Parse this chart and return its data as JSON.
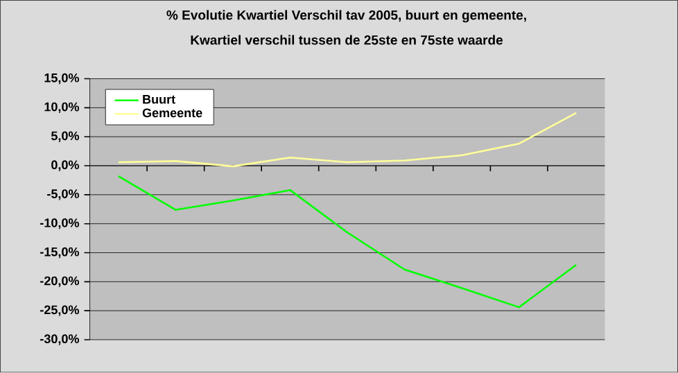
{
  "chart_data": {
    "type": "line",
    "title": "% Evolutie Kwartiel Verschil tav 2005, buurt en gemeente,",
    "subtitle": "Kwartiel verschil tussen de 25ste en 75ste waarde",
    "categories": [
      null,
      null,
      null,
      null,
      null,
      null,
      null,
      null,
      null
    ],
    "series": [
      {
        "name": "Buurt",
        "color": "#00ff00",
        "values": [
          -1.8,
          -7.6,
          -6.0,
          -4.2,
          -11.5,
          -17.9,
          -21.1,
          -24.4,
          -17.1
        ]
      },
      {
        "name": "Gemeente",
        "color": "#ffff99",
        "values": [
          0.6,
          0.8,
          -0.1,
          1.4,
          0.6,
          0.9,
          1.8,
          3.8,
          9.1
        ]
      }
    ],
    "ylim": [
      -30,
      15
    ],
    "yticks": [
      {
        "value": -30,
        "label": "-30,0%"
      },
      {
        "value": -25,
        "label": "-25,0%"
      },
      {
        "value": -20,
        "label": "-20,0%"
      },
      {
        "value": -15,
        "label": "-15,0%"
      },
      {
        "value": -10,
        "label": "-10,0%"
      },
      {
        "value": -5,
        "label": "-5,0%"
      },
      {
        "value": 0,
        "label": "0,0%"
      },
      {
        "value": 5,
        "label": "5,0%"
      },
      {
        "value": 10,
        "label": "10,0%"
      },
      {
        "value": 15,
        "label": "15,0%"
      }
    ],
    "grid": "y",
    "legend": "top left",
    "tick_labels": "y",
    "marker": "none",
    "line_style": "solid"
  }
}
